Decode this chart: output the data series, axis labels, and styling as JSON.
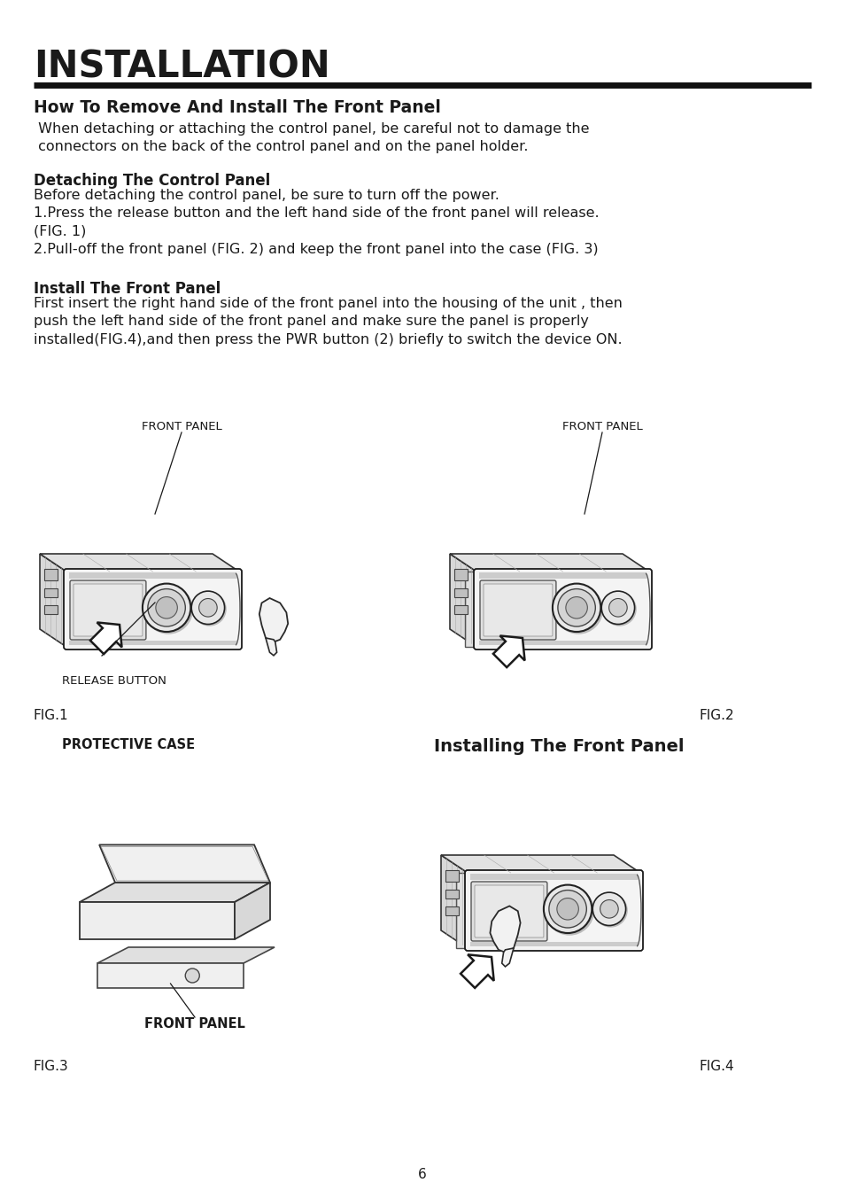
{
  "title": "INSTALLATION",
  "title_fontsize": 30,
  "section1_title": "How To Remove And Install The Front Panel",
  "section1_title_fontsize": 13.5,
  "section1_body": " When detaching or attaching the control panel, be careful not to damage the\n connectors on the back of the control panel and on the panel holder.",
  "section1_body_fontsize": 11.5,
  "subsection1_title": "Detaching The Control Panel",
  "subsection1_title_fontsize": 12,
  "subsection1_body": "Before detaching the control panel, be sure to turn off the power.\n1.Press the release button and the left hand side of the front panel will release.\n(FIG. 1)\n2.Pull-off the front panel (FIG. 2) and keep the front panel into the case (FIG. 3)",
  "subsection1_body_fontsize": 11.5,
  "subsection2_title": "Install The Front Panel",
  "subsection2_title_fontsize": 12,
  "subsection2_body": "First insert the right hand side of the front panel into the housing of the unit , then\npush the left hand side of the front panel and make sure the panel is properly\ninstalled(FIG.4),and then press the PWR button (2) briefly to switch the device ON.",
  "subsection2_body_fontsize": 11.5,
  "fig1_label": "FRONT PANEL",
  "fig1_sublabel": "RELEASE BUTTON",
  "fig1_caption": "FIG.1",
  "fig2_label": "FRONT PANEL",
  "fig2_caption": "FIG.2",
  "fig3_label": "PROTECTIVE CASE",
  "fig3_sublabel": "FRONT PANEL",
  "fig3_caption": "FIG.3",
  "fig4_title": "Installing The Front Panel",
  "fig4_caption": "FIG.4",
  "page_number": "6",
  "bg_color": "#ffffff",
  "text_color": "#1a1a1a",
  "line_color": "#1a1a1a"
}
